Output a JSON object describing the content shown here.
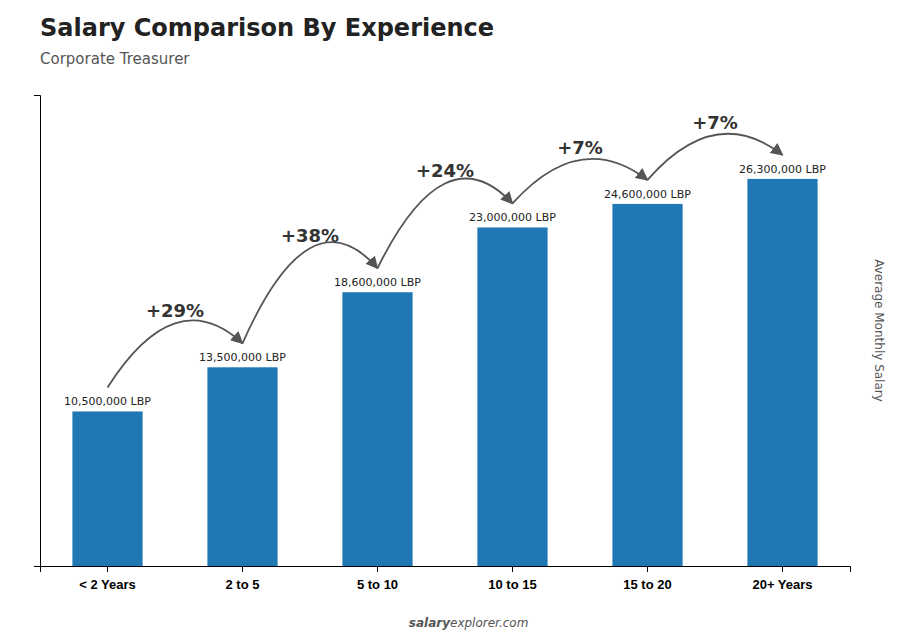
{
  "chart_data": {
    "type": "bar",
    "title": "Salary Comparison By Experience",
    "subtitle": "Corporate Treasurer",
    "categories": [
      "< 2 Years",
      "2 to 5",
      "5 to 10",
      "10 to 15",
      "15 to 20",
      "20+ Years"
    ],
    "values": [
      10500000,
      13500000,
      18600000,
      23000000,
      24600000,
      26300000
    ],
    "value_labels": [
      "10,500,000 LBP",
      "13,500,000 LBP",
      "18,600,000 LBP",
      "23,000,000 LBP",
      "24,600,000 LBP",
      "26,300,000 LBP"
    ],
    "data_labels": true,
    "annotations": [
      "+29%",
      "+38%",
      "+24%",
      "+7%",
      "+7%"
    ],
    "ylabel": "Average Monthly Salary",
    "footer": [
      "salary",
      "explorer.com"
    ],
    "ylim": [
      0,
      32000000
    ],
    "tick_labels": "x"
  }
}
